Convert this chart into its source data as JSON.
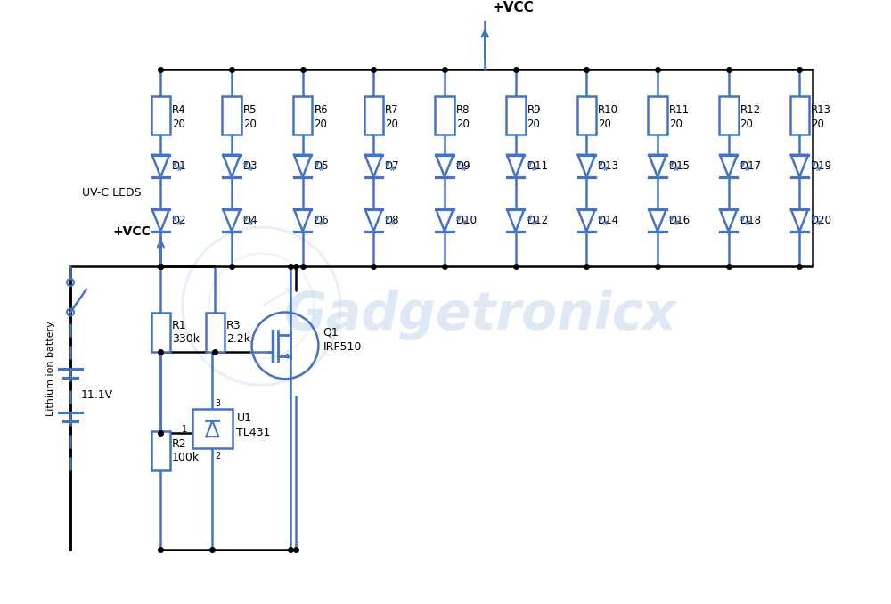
{
  "bg_color": "#ffffff",
  "line_color": "#000000",
  "component_color": "#4472c4",
  "text_color": "#000000",
  "watermark": "Gadgetronicx",
  "resistor_labels": [
    "R4",
    "R5",
    "R6",
    "R7",
    "R8",
    "R9",
    "R10",
    "R11",
    "R12",
    "R13"
  ],
  "resistor_values": [
    "20",
    "20",
    "20",
    "20",
    "20",
    "20",
    "20",
    "20",
    "20",
    "20"
  ],
  "led_top_labels": [
    "D1",
    "D3",
    "D5",
    "D7",
    "D9",
    "D11",
    "D13",
    "D15",
    "D17",
    "D19"
  ],
  "led_bot_labels": [
    "D2",
    "D4",
    "D6",
    "D8",
    "D10",
    "D12",
    "D14",
    "D16",
    "D18",
    "D20"
  ],
  "vcc_label": "+VCC",
  "uvc_label": "UV-C LEDS",
  "battery_label": "Lithium ion battery",
  "battery_voltage": "11.1V",
  "r1_label": "R1",
  "r1_val": "330k",
  "r2_label": "R2",
  "r2_val": "100k",
  "r3_label": "R3",
  "r3_val": "2.2k",
  "q1_label": "Q1",
  "q1_val": "IRF510",
  "u1_label": "U1",
  "u1_val": "TL431"
}
